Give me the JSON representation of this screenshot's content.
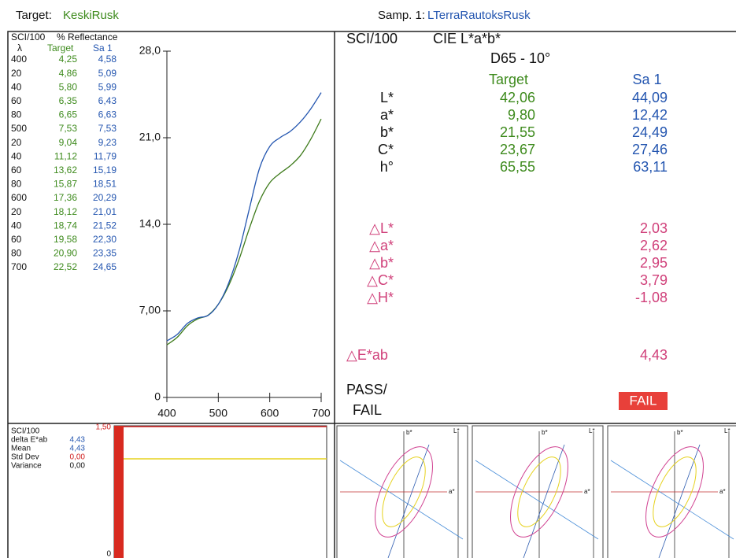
{
  "header": {
    "target_label": "Target:",
    "target_name": "KeskiRusk",
    "sample_label": "Samp. 1:",
    "sample_name": "LTerraRautoksRusk"
  },
  "reflectance": {
    "mode": "SCI/100",
    "title": "% Reflectance",
    "columns": [
      "λ",
      "Target",
      "Sa 1"
    ],
    "wavelength_labels": [
      "400",
      "20",
      "40",
      "60",
      "80",
      "500",
      "20",
      "40",
      "60",
      "80",
      "600",
      "20",
      "40",
      "60",
      "80",
      "700"
    ],
    "chart_data": {
      "type": "line",
      "x": [
        400,
        420,
        440,
        460,
        480,
        500,
        520,
        540,
        560,
        580,
        600,
        620,
        640,
        660,
        680,
        700
      ],
      "xlim": [
        400,
        700
      ],
      "xticks": [
        400,
        500,
        600,
        700
      ],
      "ylim": [
        0,
        28
      ],
      "yticks": [
        0,
        {
          "value": 7,
          "label": "7,00"
        },
        {
          "value": 14,
          "label": "14,0"
        },
        {
          "value": 21,
          "label": "21,0"
        },
        {
          "value": 28,
          "label": "28,0"
        }
      ],
      "series": [
        {
          "name": "Target",
          "color": "#3d7a1a",
          "values": [
            4.25,
            4.86,
            5.8,
            6.35,
            6.65,
            7.53,
            9.04,
            11.12,
            13.62,
            15.87,
            17.36,
            18.12,
            18.74,
            19.58,
            20.9,
            22.52
          ],
          "value_labels": [
            "4,25",
            "4,86",
            "5,80",
            "6,35",
            "6,65",
            "7,53",
            "9,04",
            "11,12",
            "13,62",
            "15,87",
            "17,36",
            "18,12",
            "18,74",
            "19,58",
            "20,90",
            "22,52"
          ]
        },
        {
          "name": "Sa 1",
          "color": "#2456b0",
          "values": [
            4.58,
            5.09,
            5.99,
            6.43,
            6.63,
            7.53,
            9.23,
            11.79,
            15.19,
            18.51,
            20.29,
            21.01,
            21.52,
            22.3,
            23.35,
            24.65
          ],
          "value_labels": [
            "4,58",
            "5,09",
            "5,99",
            "6,43",
            "6,63",
            "7,53",
            "9,23",
            "11,79",
            "15,19",
            "18,51",
            "20,29",
            "21,01",
            "21,52",
            "22,30",
            "23,35",
            "24,65"
          ]
        }
      ]
    }
  },
  "colorimetry": {
    "mode": "SCI/100",
    "space": "CIE L*a*b*",
    "illuminant": "D65 - 10°",
    "columns": [
      "Target",
      "Sa 1"
    ],
    "rows": [
      [
        "L*",
        "42,06",
        "44,09"
      ],
      [
        "a*",
        "9,80",
        "12,42"
      ],
      [
        "b*",
        "21,55",
        "24,49"
      ],
      [
        "C*",
        "23,67",
        "27,46"
      ],
      [
        "h°",
        "65,55",
        "63,11"
      ]
    ],
    "deltas": [
      [
        "△L*",
        "2,03"
      ],
      [
        "△a*",
        "2,62"
      ],
      [
        "△b*",
        "2,95"
      ],
      [
        "△C*",
        "3,79"
      ],
      [
        "△H*",
        "-1,08"
      ]
    ],
    "delta_e": [
      "△E*ab",
      "4,43"
    ],
    "pass_fail_label": [
      "PASS/",
      "FAIL"
    ],
    "result": "FAIL"
  },
  "stats": {
    "mode": "SCI/100",
    "rows": [
      [
        "delta E*ab",
        "4,43"
      ],
      [
        "Mean",
        "4,43"
      ],
      [
        "Std Dev",
        "0,00"
      ],
      [
        "Variance",
        "0,00"
      ]
    ],
    "tolerance_label": "1,50",
    "zero_label": "0"
  },
  "ellipse_plots": [
    {
      "b": "b*",
      "l": "L*",
      "a": "a*"
    },
    {
      "b": "b*",
      "l": "L*",
      "a": "a*"
    },
    {
      "b": "b*",
      "l": "L*",
      "a": "a*"
    }
  ]
}
